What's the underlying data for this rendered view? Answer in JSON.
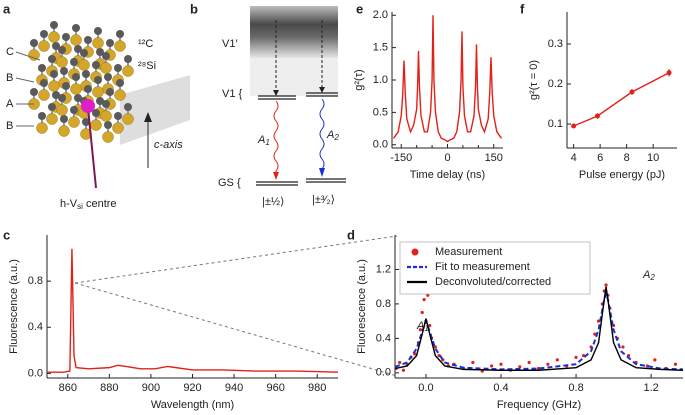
{
  "diagram_a": {
    "label": "a",
    "layers": [
      "C",
      "B",
      "A",
      "B"
    ],
    "isotopes": [
      "¹²C",
      "²⁸Si"
    ],
    "axis_label": "c-axis",
    "defect": {
      "main": "h-V",
      "sub": "si",
      "tail": " centre"
    }
  },
  "diagram_b": {
    "label": "b",
    "excited": "V1′",
    "v1": "V1 {",
    "gs": "GS {",
    "transitions": [
      {
        "main": "A",
        "sub": "1"
      },
      {
        "main": "A",
        "sub": "2"
      }
    ],
    "states": [
      "|±½⟩",
      "|±³⁄₂⟩"
    ]
  },
  "chart_data": [
    {
      "label": "c",
      "type": "line",
      "xlabel": "Wavelength (nm)",
      "ylabel": "Fluorescence (a.u.)",
      "xlim": [
        850,
        990
      ],
      "ylim": [
        -0.04,
        1.2
      ],
      "xticks": [
        860,
        880,
        900,
        920,
        940,
        960,
        980
      ],
      "yticks": [
        {
          "value": 0,
          "label": "0.0"
        },
        0.4,
        0.8
      ],
      "series": [
        {
          "color": "#e32119",
          "style": "line",
          "x": [
            850,
            858,
            861,
            862,
            863,
            864,
            870,
            880,
            884,
            888,
            895,
            902,
            908,
            912,
            920,
            935,
            950,
            970,
            990
          ],
          "values": [
            0.01,
            0.01,
            0.02,
            1.08,
            0.15,
            0.05,
            0.04,
            0.05,
            0.07,
            0.06,
            0.04,
            0.04,
            0.06,
            0.05,
            0.03,
            0.03,
            0.02,
            0.02,
            0.01
          ]
        }
      ]
    },
    {
      "label": "d",
      "type": "line",
      "xlabel": "Frequency (GHz)",
      "ylabel": "Fluorescence (a.u.)",
      "xlim": [
        -0.165,
        1.37
      ],
      "ylim": [
        -0.06,
        1.6
      ],
      "xticks": [
        {
          "value": 0,
          "label": "0.0"
        },
        0.4,
        0.8,
        1.2
      ],
      "yticks": [
        {
          "value": 0,
          "label": "0.0"
        },
        0.4,
        0.8,
        1.2
      ],
      "annotations": [
        {
          "main": "A",
          "sub": "1"
        },
        {
          "main": "A",
          "sub": "2"
        }
      ],
      "series": [
        {
          "name": "Measurement",
          "color": "#e32119",
          "style": "markers",
          "x": [
            -0.16,
            -0.14,
            -0.12,
            -0.1,
            -0.08,
            -0.06,
            -0.04,
            -0.03,
            -0.02,
            -0.01,
            0,
            0.01,
            0.02,
            0.03,
            0.05,
            0.07,
            0.09,
            0.12,
            0.15,
            0.2,
            0.25,
            0.3,
            0.35,
            0.4,
            0.45,
            0.5,
            0.55,
            0.6,
            0.65,
            0.7,
            0.75,
            0.8,
            0.84,
            0.88,
            0.9,
            0.92,
            0.94,
            0.95,
            0.96,
            0.97,
            0.98,
            1,
            1.02,
            1.05,
            1.08,
            1.12,
            1.18,
            1.22,
            1.28,
            1.33
          ],
          "values": [
            0.05,
            0.12,
            0.03,
            0.1,
            0.18,
            0.22,
            0.35,
            0.5,
            0.7,
            0.85,
            0.6,
            0.9,
            0.55,
            0.4,
            0.3,
            0.2,
            0.15,
            0.08,
            0.1,
            0.05,
            0.12,
            0.02,
            0.08,
            0.1,
            0.03,
            0.07,
            0.12,
            0.05,
            0.1,
            0.15,
            0.08,
            0.18,
            0.2,
            0.3,
            0.45,
            0.6,
            0.8,
            0.95,
            1.02,
            0.9,
            0.75,
            0.55,
            0.4,
            0.3,
            0.2,
            0.12,
            0.08,
            0.15,
            0.05,
            0.1
          ]
        },
        {
          "name": "Fit to measurement",
          "color": "#1a2fd6",
          "style": "dashed",
          "x": [
            -0.165,
            -0.1,
            -0.05,
            -0.02,
            0,
            0.02,
            0.05,
            0.1,
            0.2,
            0.4,
            0.6,
            0.8,
            0.88,
            0.92,
            0.95,
            0.96,
            0.97,
            1,
            1.04,
            1.12,
            1.25,
            1.37
          ],
          "values": [
            0.07,
            0.12,
            0.28,
            0.48,
            0.6,
            0.48,
            0.28,
            0.12,
            0.06,
            0.04,
            0.05,
            0.1,
            0.25,
            0.5,
            0.85,
            0.92,
            0.85,
            0.5,
            0.25,
            0.1,
            0.05,
            0.04
          ]
        },
        {
          "name": "Deconvoluted/corrected",
          "color": "#000000",
          "style": "line",
          "x": [
            -0.165,
            -0.1,
            -0.05,
            -0.02,
            0,
            0.02,
            0.05,
            0.1,
            0.2,
            0.4,
            0.6,
            0.8,
            0.88,
            0.92,
            0.95,
            0.96,
            0.97,
            1,
            1.04,
            1.12,
            1.25,
            1.37
          ],
          "values": [
            0.05,
            0.08,
            0.2,
            0.45,
            0.63,
            0.45,
            0.2,
            0.08,
            0.04,
            0.03,
            0.03,
            0.06,
            0.15,
            0.35,
            0.85,
            1,
            0.85,
            0.35,
            0.15,
            0.06,
            0.04,
            0.03
          ]
        }
      ]
    },
    {
      "label": "e",
      "type": "line",
      "xlabel": "Time delay (ns)",
      "ylabel": "g²(τ)",
      "xlim": [
        -180,
        180
      ],
      "ylim": [
        -0.05,
        2.05
      ],
      "xticks": [
        -150,
        0,
        150
      ],
      "xminorticks": [
        -100,
        -50,
        50,
        100
      ],
      "yticks": [
        {
          "value": 0,
          "label": "0.0"
        },
        0.5,
        {
          "value": 1,
          "label": "1.0"
        },
        1.5,
        {
          "value": 2,
          "label": "2.0"
        }
      ],
      "series": [
        {
          "color": "#e32119",
          "style": "line",
          "x": [
            -175,
            -160,
            -150,
            -145,
            -141,
            -137,
            -132,
            -120,
            -110,
            -100,
            -97,
            -94,
            -91,
            -86,
            -75,
            -65,
            -55,
            -50,
            -47,
            -44,
            -39,
            -30,
            -20,
            -10,
            0,
            10,
            20,
            30,
            39,
            44,
            47,
            50,
            55,
            65,
            75,
            86,
            91,
            94,
            97,
            100,
            110,
            120,
            132,
            137,
            141,
            145,
            150,
            160,
            175
          ],
          "values": [
            0.1,
            0.2,
            0.45,
            0.8,
            1.3,
            0.8,
            0.4,
            0.2,
            0.3,
            0.55,
            0.9,
            1.45,
            0.9,
            0.45,
            0.2,
            0.2,
            0.5,
            1.0,
            2.0,
            1.0,
            0.5,
            0.2,
            0.1,
            0.08,
            0.05,
            0.08,
            0.1,
            0.2,
            0.5,
            1.0,
            1.75,
            0.9,
            0.45,
            0.2,
            0.2,
            0.45,
            0.9,
            1.55,
            0.9,
            0.55,
            0.3,
            0.2,
            0.4,
            0.8,
            1.35,
            0.8,
            0.45,
            0.2,
            0.1
          ]
        }
      ]
    },
    {
      "label": "f",
      "type": "line",
      "xlabel": "Pulse energy (pJ)",
      "ylabel": "g²(τ = 0)",
      "xlim": [
        3.5,
        11.8
      ],
      "ylim": [
        0.04,
        0.38
      ],
      "xticks": [
        4,
        6,
        8,
        10
      ],
      "yticks": [
        0.1,
        0.2,
        0.3
      ],
      "series": [
        {
          "color": "#e32119",
          "style": "line+markers",
          "x": [
            4,
            5.8,
            8.4,
            11.2
          ],
          "values": [
            0.095,
            0.12,
            0.18,
            0.228
          ],
          "errors": [
            0.005,
            0.007,
            0.007,
            0.009
          ]
        }
      ]
    }
  ]
}
